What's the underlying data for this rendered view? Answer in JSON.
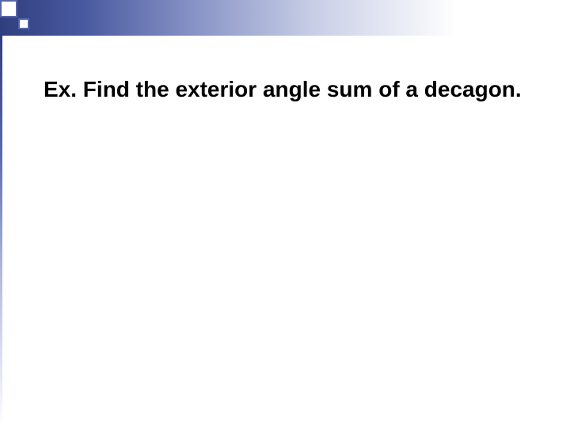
{
  "slide": {
    "heading": "Ex. Find the exterior angle sum of a decagon.",
    "colors": {
      "gradient_start": "#2e3e7e",
      "gradient_end": "#ffffff",
      "square_border": "#5566aa",
      "text_color": "#000000",
      "background": "#ffffff"
    },
    "typography": {
      "heading_fontsize": 28,
      "heading_weight": "bold",
      "font_family": "Arial"
    }
  }
}
